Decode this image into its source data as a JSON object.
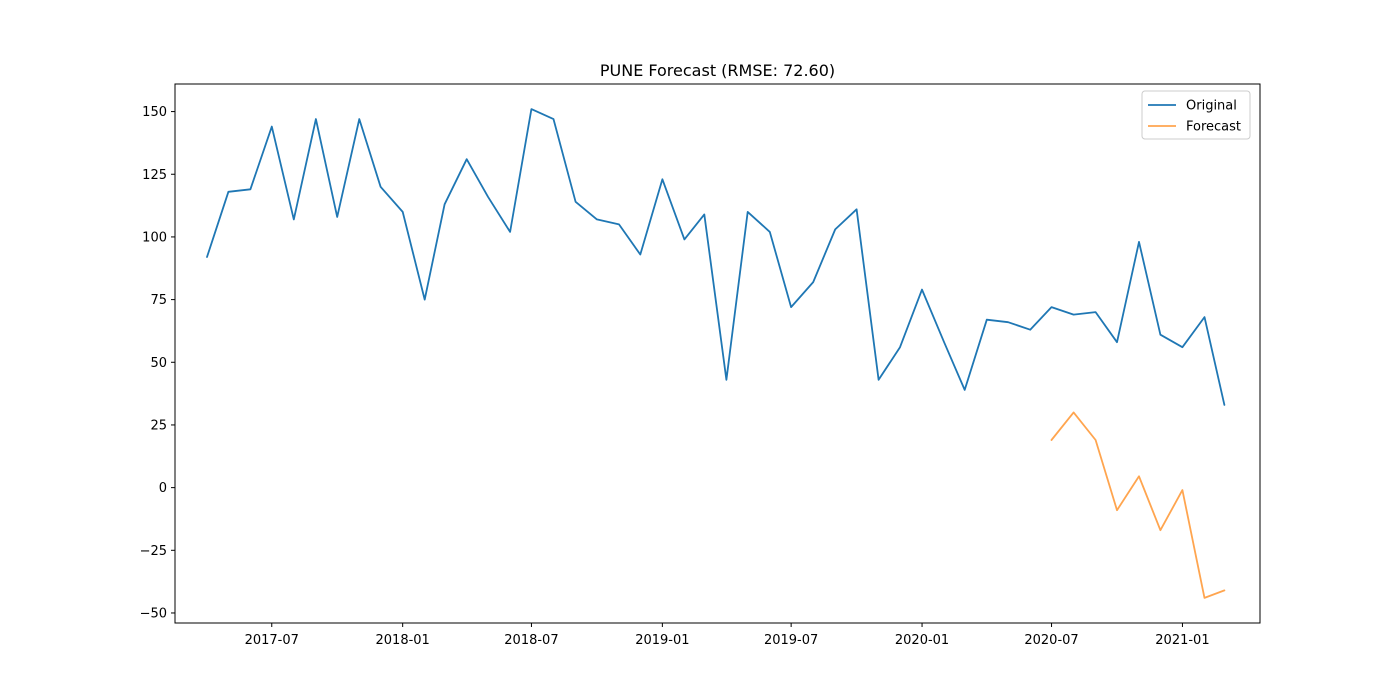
{
  "chart_data": {
    "type": "line",
    "title": "PUNE Forecast (RMSE: 72.60)",
    "xlabel": "",
    "ylabel": "",
    "x_range": [
      "2017-02-15",
      "2021-04-20"
    ],
    "ylim": [
      -54,
      161
    ],
    "yticks": [
      -50,
      -25,
      0,
      25,
      50,
      75,
      100,
      125,
      150
    ],
    "xticks": [
      {
        "date": "2017-07-01",
        "label": "2017-07"
      },
      {
        "date": "2018-01-01",
        "label": "2018-01"
      },
      {
        "date": "2018-07-01",
        "label": "2018-07"
      },
      {
        "date": "2019-01-01",
        "label": "2019-01"
      },
      {
        "date": "2019-07-01",
        "label": "2019-07"
      },
      {
        "date": "2020-01-01",
        "label": "2020-01"
      },
      {
        "date": "2020-07-01",
        "label": "2020-07"
      },
      {
        "date": "2021-01-01",
        "label": "2021-01"
      }
    ],
    "grid": false,
    "legend": {
      "position": "top-right",
      "entries": [
        "Original",
        "Forecast"
      ]
    },
    "series": [
      {
        "name": "Original",
        "color": "#1f77b4",
        "x": [
          "2017-04",
          "2017-05",
          "2017-06",
          "2017-07",
          "2017-08",
          "2017-09",
          "2017-10",
          "2017-11",
          "2017-12",
          "2018-01",
          "2018-02",
          "2018-03",
          "2018-04",
          "2018-05",
          "2018-06",
          "2018-07",
          "2018-08",
          "2018-09",
          "2018-10",
          "2018-11",
          "2018-12",
          "2019-01",
          "2019-02",
          "2019-03",
          "2019-04",
          "2019-05",
          "2019-06",
          "2019-07",
          "2019-08",
          "2019-09",
          "2019-10",
          "2019-11",
          "2019-12",
          "2020-01",
          "2020-02",
          "2020-03",
          "2020-04",
          "2020-05",
          "2020-06",
          "2020-07",
          "2020-08",
          "2020-09",
          "2020-10",
          "2020-11",
          "2020-12",
          "2021-01",
          "2021-02",
          "2021-03"
        ],
        "values": [
          92,
          118,
          119,
          144,
          107,
          147,
          108,
          147,
          120,
          110,
          75,
          113,
          131,
          116,
          102,
          151,
          147,
          114,
          107,
          105,
          93,
          123,
          99,
          109,
          43,
          110,
          102,
          72,
          82,
          103,
          111,
          43,
          56,
          79,
          58,
          39,
          67,
          66,
          63,
          72,
          69,
          70,
          58,
          98,
          61,
          56,
          68,
          33
        ]
      },
      {
        "name": "Forecast",
        "color": "#ffa54f",
        "x": [
          "2020-07",
          "2020-08",
          "2020-09",
          "2020-10",
          "2020-11",
          "2020-12",
          "2021-01",
          "2021-02",
          "2021-03"
        ],
        "values": [
          19,
          30,
          19,
          -9,
          4.5,
          -17,
          -1,
          -44,
          -41
        ]
      }
    ]
  }
}
